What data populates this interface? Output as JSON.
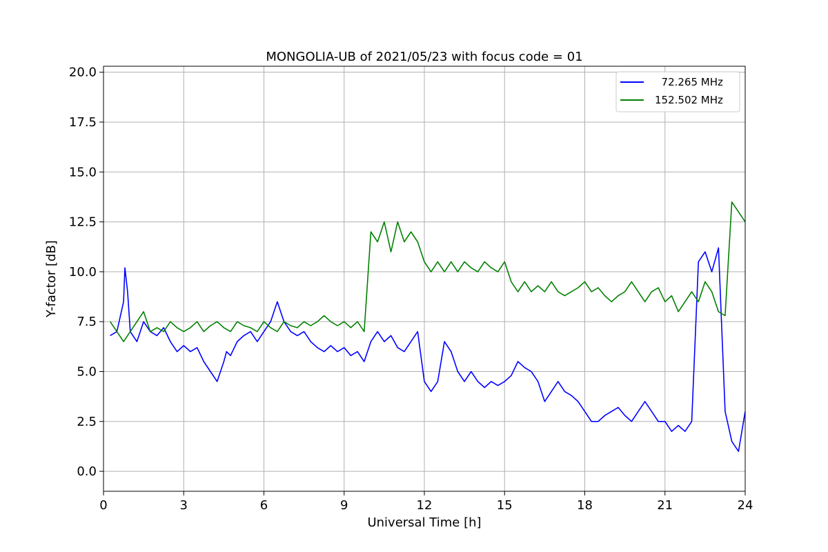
{
  "chart_data": {
    "type": "line",
    "title": "MONGOLIA-UB of 2021/05/23 with focus code = 01",
    "xlabel": "Universal Time [h]",
    "ylabel": "Y-factor [dB]",
    "xlim": [
      0,
      24
    ],
    "ylim": [
      -1.0,
      20.3
    ],
    "xticks": [
      0,
      3,
      6,
      9,
      12,
      15,
      18,
      21,
      24
    ],
    "yticks": [
      0.0,
      2.5,
      5.0,
      7.5,
      10.0,
      12.5,
      15.0,
      17.5,
      20.0
    ],
    "ytick_labels": [
      "0.0",
      "2.5",
      "5.0",
      "7.5",
      "10.0",
      "12.5",
      "15.0",
      "17.5",
      "20.0"
    ],
    "grid": true,
    "legend_position": "top-right",
    "series": [
      {
        "name": "  72.265 MHz",
        "color": "#0000ff",
        "x": [
          0.25,
          0.5,
          0.75,
          0.8,
          0.9,
          1.0,
          1.25,
          1.5,
          1.75,
          2.0,
          2.25,
          2.5,
          2.75,
          3.0,
          3.25,
          3.5,
          3.75,
          4.0,
          4.25,
          4.5,
          4.6,
          4.75,
          5.0,
          5.25,
          5.5,
          5.75,
          6.0,
          6.25,
          6.5,
          6.75,
          7.0,
          7.25,
          7.5,
          7.75,
          8.0,
          8.25,
          8.5,
          8.75,
          9.0,
          9.25,
          9.5,
          9.75,
          10.0,
          10.25,
          10.5,
          10.75,
          11.0,
          11.25,
          11.5,
          11.75,
          12.0,
          12.25,
          12.5,
          12.75,
          13.0,
          13.25,
          13.5,
          13.75,
          14.0,
          14.25,
          14.5,
          14.75,
          15.0,
          15.25,
          15.5,
          15.75,
          16.0,
          16.25,
          16.5,
          16.75,
          17.0,
          17.25,
          17.5,
          17.75,
          18.0,
          18.25,
          18.5,
          18.75,
          19.0,
          19.25,
          19.5,
          19.75,
          20.0,
          20.25,
          20.5,
          20.75,
          21.0,
          21.25,
          21.5,
          21.75,
          22.0,
          22.25,
          22.5,
          22.75,
          23.0,
          23.25,
          23.5,
          23.75,
          24.0
        ],
        "y": [
          6.8,
          7.0,
          8.5,
          10.2,
          9.0,
          7.0,
          6.5,
          7.5,
          7.0,
          6.8,
          7.2,
          6.5,
          6.0,
          6.3,
          6.0,
          6.2,
          5.5,
          5.0,
          4.5,
          5.5,
          6.0,
          5.8,
          6.5,
          6.8,
          7.0,
          6.5,
          7.0,
          7.5,
          8.5,
          7.5,
          7.0,
          6.8,
          7.0,
          6.5,
          6.2,
          6.0,
          6.3,
          6.0,
          6.2,
          5.8,
          6.0,
          5.5,
          6.5,
          7.0,
          6.5,
          6.8,
          6.2,
          6.0,
          6.5,
          7.0,
          4.5,
          4.0,
          4.5,
          6.5,
          6.0,
          5.0,
          4.5,
          5.0,
          4.5,
          4.2,
          4.5,
          4.3,
          4.5,
          4.8,
          5.5,
          5.2,
          5.0,
          4.5,
          3.5,
          4.0,
          4.5,
          4.0,
          3.8,
          3.5,
          3.0,
          2.5,
          2.5,
          2.8,
          3.0,
          3.2,
          2.8,
          2.5,
          3.0,
          3.5,
          3.0,
          2.5,
          2.5,
          2.0,
          2.3,
          2.0,
          2.5,
          10.5,
          11.0,
          10.0,
          11.2,
          3.0,
          1.5,
          1.0,
          3.0
        ]
      },
      {
        "name": "152.502 MHz",
        "color": "#008000",
        "x": [
          0.25,
          0.5,
          0.75,
          1.0,
          1.25,
          1.5,
          1.75,
          2.0,
          2.25,
          2.5,
          2.75,
          3.0,
          3.25,
          3.5,
          3.75,
          4.0,
          4.25,
          4.5,
          4.75,
          5.0,
          5.25,
          5.5,
          5.75,
          6.0,
          6.25,
          6.5,
          6.75,
          7.0,
          7.25,
          7.5,
          7.75,
          8.0,
          8.25,
          8.5,
          8.75,
          9.0,
          9.25,
          9.5,
          9.75,
          10.0,
          10.25,
          10.5,
          10.75,
          11.0,
          11.25,
          11.5,
          11.75,
          12.0,
          12.25,
          12.5,
          12.75,
          13.0,
          13.25,
          13.5,
          13.75,
          14.0,
          14.25,
          14.5,
          14.75,
          15.0,
          15.25,
          15.5,
          15.75,
          16.0,
          16.25,
          16.5,
          16.75,
          17.0,
          17.25,
          17.5,
          17.75,
          18.0,
          18.25,
          18.5,
          18.75,
          19.0,
          19.25,
          19.5,
          19.75,
          20.0,
          20.25,
          20.5,
          20.75,
          21.0,
          21.25,
          21.5,
          21.75,
          22.0,
          22.25,
          22.5,
          22.75,
          23.0,
          23.25,
          23.5,
          23.75,
          24.0
        ],
        "y": [
          7.5,
          7.0,
          6.5,
          7.0,
          7.5,
          8.0,
          7.0,
          7.2,
          7.0,
          7.5,
          7.2,
          7.0,
          7.2,
          7.5,
          7.0,
          7.3,
          7.5,
          7.2,
          7.0,
          7.5,
          7.3,
          7.2,
          7.0,
          7.5,
          7.2,
          7.0,
          7.5,
          7.3,
          7.2,
          7.5,
          7.3,
          7.5,
          7.8,
          7.5,
          7.3,
          7.5,
          7.2,
          7.5,
          7.0,
          12.0,
          11.5,
          12.5,
          11.0,
          12.5,
          11.5,
          12.0,
          11.5,
          10.5,
          10.0,
          10.5,
          10.0,
          10.5,
          10.0,
          10.5,
          10.2,
          10.0,
          10.5,
          10.2,
          10.0,
          10.5,
          9.5,
          9.0,
          9.5,
          9.0,
          9.3,
          9.0,
          9.5,
          9.0,
          8.8,
          9.0,
          9.2,
          9.5,
          9.0,
          9.2,
          8.8,
          8.5,
          8.8,
          9.0,
          9.5,
          9.0,
          8.5,
          9.0,
          9.2,
          8.5,
          8.8,
          8.0,
          8.5,
          9.0,
          8.5,
          9.5,
          9.0,
          8.0,
          7.8,
          13.5,
          13.0,
          12.5
        ]
      }
    ]
  }
}
